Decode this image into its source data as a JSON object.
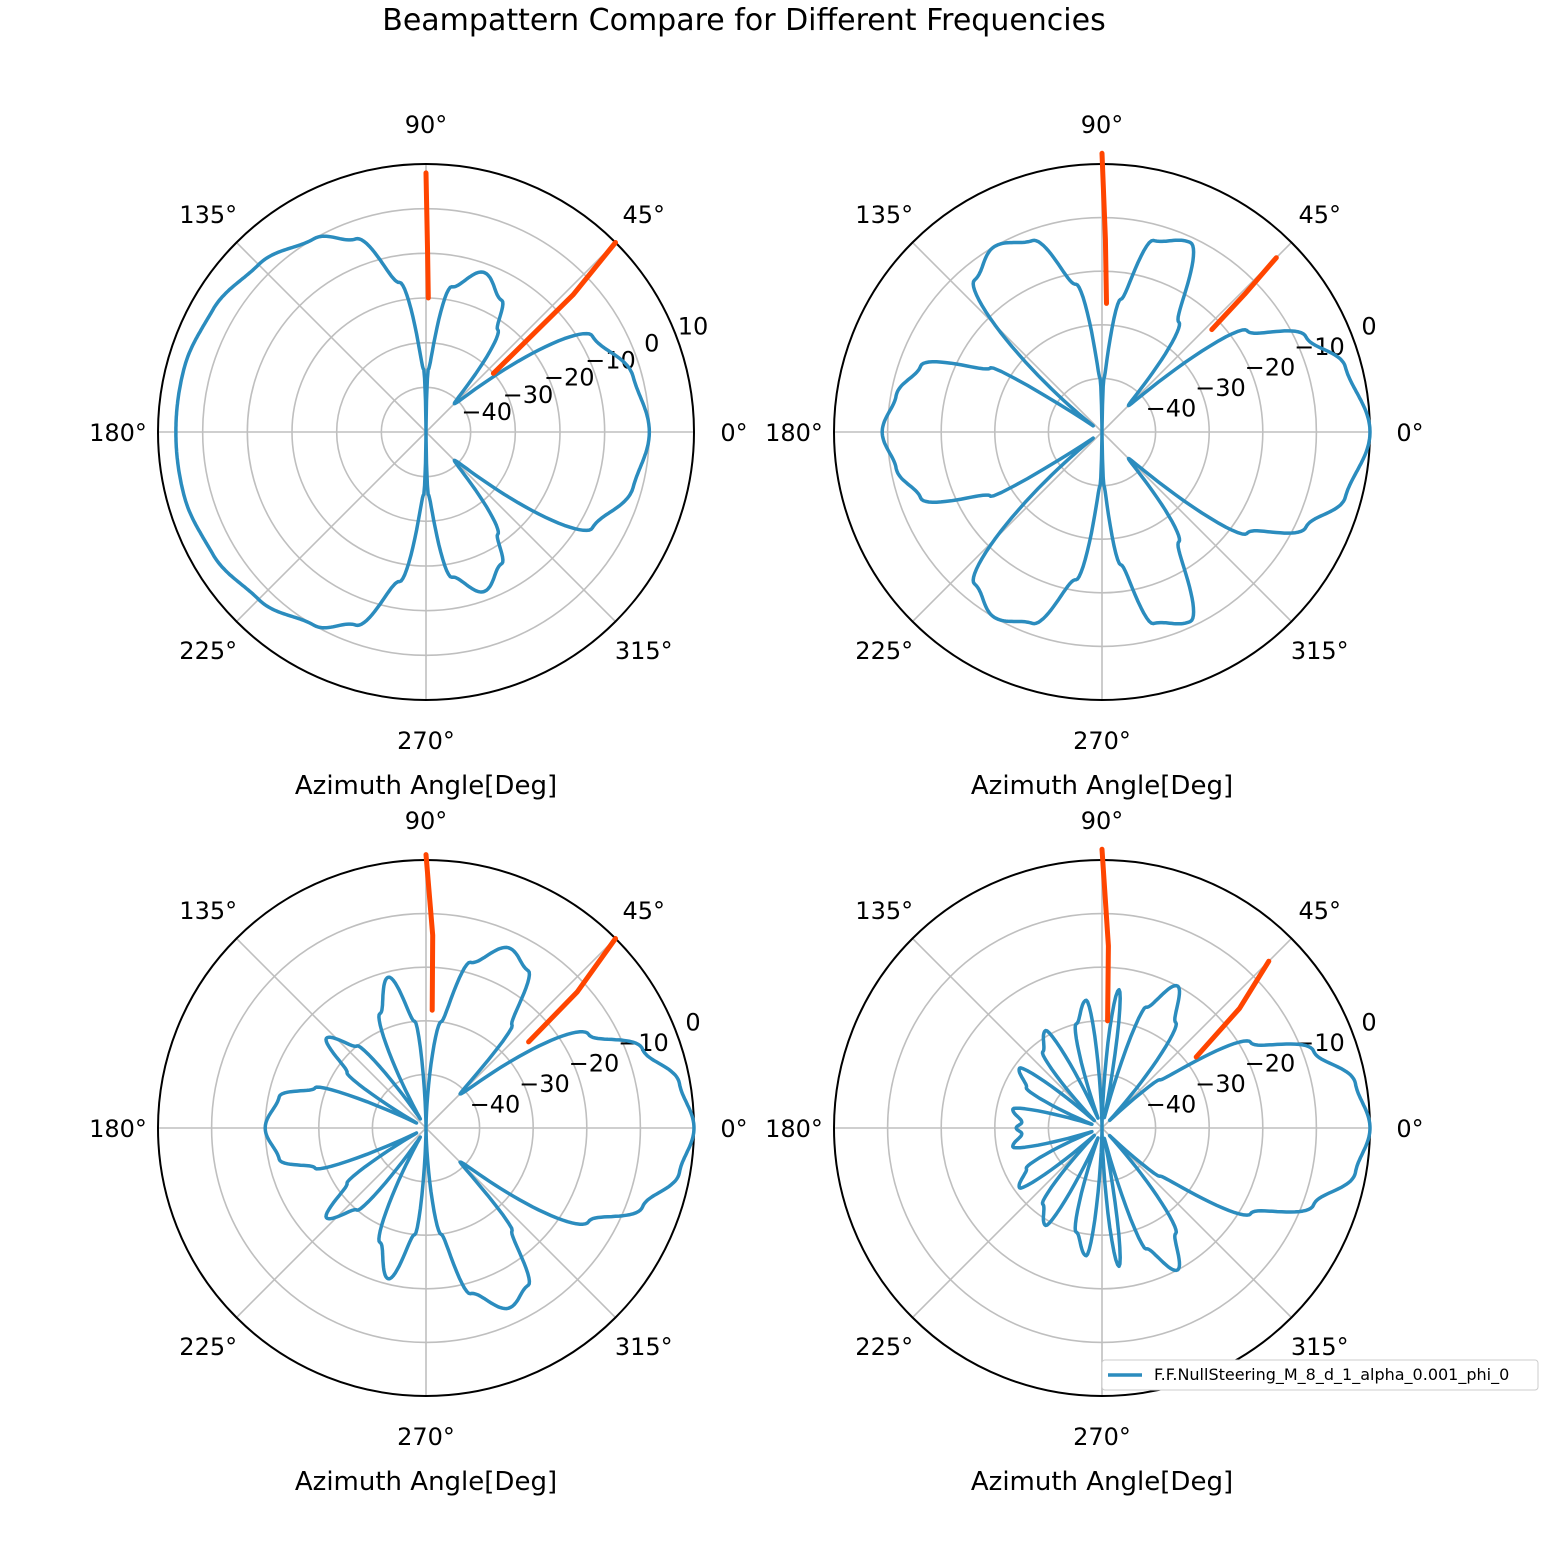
{
  "figure": {
    "title": "Beampattern Compare for Different Frequencies",
    "colors": {
      "beam": "#2b8cbe",
      "null_marker": "#ff4500",
      "grid": "#bfbfbf",
      "frame": "#000000"
    }
  },
  "legend": {
    "label": "F.F.NullSteering_M_8_d_1_alpha_0.001_phi_0",
    "placement": "lower-right"
  },
  "chart_data": [
    {
      "type": "polar-line",
      "xlabel": "Azimuth Angle[Deg]",
      "angle_ticks": [
        "0°",
        "45°",
        "90°",
        "135°",
        "180°",
        "225°",
        "270°",
        "315°"
      ],
      "radial_ticks": [
        -40,
        -30,
        -20,
        -10,
        0,
        10
      ],
      "radial_tick_labels": [
        "−40",
        "−30",
        "−20",
        "−10",
        "0",
        "10"
      ],
      "rlim": [
        -50,
        10
      ],
      "null_directions_deg": [
        45,
        90
      ],
      "beam_db": {
        "angles_deg": [
          0,
          15,
          30,
          45,
          55,
          60,
          70,
          80,
          88,
          90,
          92,
          100,
          110,
          120,
          135,
          150,
          165,
          180
        ],
        "values": [
          0,
          -2,
          -7,
          -41,
          -22,
          -16,
          -12,
          -17,
          -36,
          -50,
          -36,
          -16,
          -4,
          0,
          3,
          5,
          6,
          6
        ]
      },
      "null_markers": [
        {
          "angles_deg": [
            41,
            43,
            45
          ],
          "values": [
            -30,
            -5,
            10
          ]
        },
        {
          "angles_deg": [
            89,
            89.5,
            90
          ],
          "values": [
            -20,
            -10,
            8
          ]
        }
      ]
    },
    {
      "type": "polar-line",
      "xlabel": "Azimuth Angle[Deg]",
      "angle_ticks": [
        "0°",
        "45°",
        "90°",
        "135°",
        "180°",
        "225°",
        "270°",
        "315°"
      ],
      "radial_ticks": [
        -40,
        -30,
        -20,
        -10,
        0
      ],
      "radial_tick_labels": [
        "−40",
        "−30",
        "−20",
        "−10",
        "0"
      ],
      "rlim": [
        -50,
        0
      ],
      "null_directions_deg": [
        45,
        90
      ],
      "beam_db": {
        "angles_deg": [
          0,
          15,
          25,
          35,
          45,
          55,
          65,
          75,
          82,
          88,
          90,
          92,
          100,
          110,
          120,
          130,
          145,
          150,
          160,
          170,
          180
        ],
        "values": [
          0,
          -3,
          -8,
          -17,
          -43,
          -25,
          -11,
          -13,
          -25,
          -40,
          -50,
          -40,
          -22,
          -12,
          -10,
          -13,
          -48,
          -26,
          -14,
          -11,
          -9
        ]
      },
      "null_markers": [
        {
          "angles_deg": [
            43,
            44,
            45
          ],
          "values": [
            -22,
            -13,
            -4
          ]
        },
        {
          "angles_deg": [
            88,
            89,
            90
          ],
          "values": [
            -26,
            -14,
            2
          ]
        }
      ]
    },
    {
      "type": "polar-line",
      "xlabel": "Azimuth Angle[Deg]",
      "angle_ticks": [
        "0°",
        "45°",
        "90°",
        "135°",
        "180°",
        "225°",
        "270°",
        "315°"
      ],
      "radial_ticks": [
        -40,
        -30,
        -20,
        -10,
        0
      ],
      "radial_tick_labels": [
        "−40",
        "−30",
        "−20",
        "−10",
        "0"
      ],
      "rlim": [
        -50,
        0
      ],
      "null_directions_deg": [
        45,
        90
      ],
      "beam_db": {
        "angles_deg": [
          0,
          10,
          20,
          30,
          45,
          50,
          57,
          65,
          75,
          82,
          90,
          96,
          104,
          112,
          122,
          130,
          138,
          145,
          152,
          160,
          168,
          180
        ],
        "values": [
          0,
          -2,
          -7,
          -15,
          -41,
          -25,
          -15,
          -13,
          -18,
          -30,
          -50,
          -30,
          -21,
          -27,
          -48,
          -30,
          -25,
          -32,
          -48,
          -28,
          -22,
          -20
        ]
      },
      "null_markers": [
        {
          "angles_deg": [
            40,
            42,
            45
          ],
          "values": [
            -25,
            -12,
            0
          ]
        },
        {
          "angles_deg": [
            87,
            88,
            90
          ],
          "values": [
            -28,
            -14,
            1
          ]
        }
      ]
    },
    {
      "type": "polar-line",
      "xlabel": "Azimuth Angle[Deg]",
      "angle_ticks": [
        "0°",
        "45°",
        "90°",
        "135°",
        "180°",
        "225°",
        "270°",
        "315°"
      ],
      "radial_ticks": [
        -40,
        -30,
        -20,
        -10,
        0
      ],
      "radial_tick_labels": [
        "−40",
        "−30",
        "−20",
        "−10",
        "0"
      ],
      "rlim": [
        -50,
        0
      ],
      "null_directions_deg": [
        45,
        90
      ],
      "beam_db": {
        "angles_deg": [
          0,
          10,
          20,
          30,
          40,
          45,
          55,
          62,
          70,
          77,
          83,
          90,
          97,
          104,
          112,
          120,
          128,
          136,
          144,
          152,
          160,
          168,
          176,
          180
        ],
        "values": [
          0,
          -2,
          -8,
          -18,
          -36,
          -48,
          -26,
          -20,
          -26,
          -48,
          -24,
          -50,
          -26,
          -30,
          -48,
          -29,
          -32,
          -48,
          -31,
          -34,
          -48,
          -33,
          -35,
          -34
        ]
      },
      "null_markers": [
        {
          "angles_deg": [
            37,
            41,
            45
          ],
          "values": [
            -28,
            -16,
            -6
          ]
        },
        {
          "angles_deg": [
            87,
            88,
            90
          ],
          "values": [
            -30,
            -16,
            2
          ]
        }
      ]
    }
  ]
}
